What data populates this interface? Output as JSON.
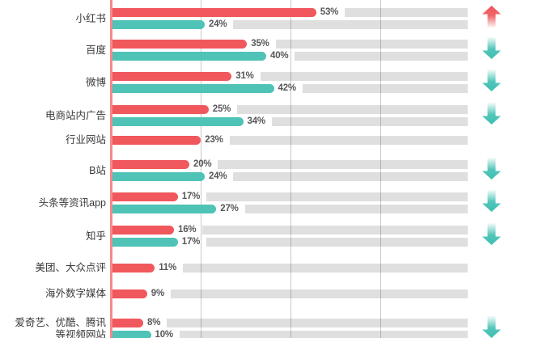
{
  "chart_data": {
    "type": "bar",
    "orientation": "horizontal",
    "title": "",
    "value_suffix": "%",
    "x_axis_labels_visible": false,
    "grid": "vertical unlabeled gridlines",
    "legend_position": "not visible (cropped)",
    "categories": [
      "小红书",
      "百度",
      "微博",
      "电商站内广告",
      "行业网站",
      "B站",
      "头条等资讯app",
      "知乎",
      "美团、大众点评",
      "海外数字媒体",
      "爱奇艺、优酷、腾讯\n等视频网站"
    ],
    "series": [
      {
        "name": "series-1-red",
        "color": "#f0585d",
        "values": [
          53,
          35,
          31,
          25,
          23,
          20,
          17,
          16,
          11,
          9,
          8
        ]
      },
      {
        "name": "series-2-teal",
        "color": "#4ec3b6",
        "values": [
          24,
          40,
          42,
          34,
          null,
          24,
          27,
          17,
          null,
          null,
          10
        ]
      }
    ],
    "value_labels": [
      [
        "53%",
        "24%"
      ],
      [
        "35%",
        "40%"
      ],
      [
        "31%",
        "42%"
      ],
      [
        "25%",
        "34%"
      ],
      [
        "23%",
        null
      ],
      [
        "20%",
        "24%"
      ],
      [
        "17%",
        "27%"
      ],
      [
        "16%",
        "17%"
      ],
      [
        "11%",
        null
      ],
      [
        "9%",
        null
      ],
      [
        "8%",
        "10%"
      ]
    ],
    "trend_arrows": [
      "up",
      "down",
      "down",
      "down",
      "none",
      "down",
      "down",
      "down",
      "none",
      "none",
      "down"
    ]
  },
  "style": {
    "series1_color": "#f0585d",
    "series2_color": "#4ec3b6",
    "track_color": "#dcdcdd",
    "axis_line_color": "#f4898c",
    "gridline_color": "#c9c9cd",
    "label_text_color": "#3a3a3c",
    "value_text_color": "#57575a",
    "arrow_up_color": "#ef5459",
    "arrow_down_color": "#3ebfb2"
  }
}
